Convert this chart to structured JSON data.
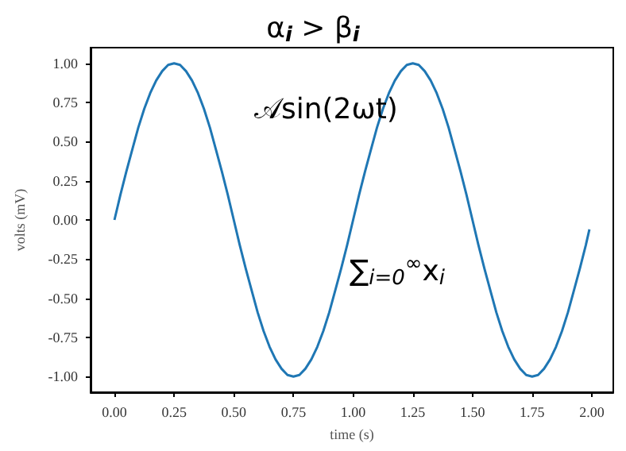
{
  "chart_data": {
    "type": "line",
    "title": "α$_{i}$ > β$_{i}$",
    "xlabel": "time (s)",
    "ylabel": "volts (mV)",
    "annotations": [
      "𝒜sin(2ωt)",
      "∑$_{i=0}$$^{∞}$x$_{i}$"
    ],
    "x": [
      0,
      0.025,
      0.05,
      0.075,
      0.1,
      0.125,
      0.15,
      0.175,
      0.2,
      0.225,
      0.25,
      0.275,
      0.3,
      0.325,
      0.35,
      0.375,
      0.4,
      0.425,
      0.45,
      0.475,
      0.5,
      0.525,
      0.55,
      0.575,
      0.6,
      0.625,
      0.65,
      0.675,
      0.7,
      0.725,
      0.75,
      0.775,
      0.8,
      0.825,
      0.85,
      0.875,
      0.9,
      0.925,
      0.95,
      0.975,
      1,
      1.025,
      1.05,
      1.075,
      1.1,
      1.125,
      1.15,
      1.175,
      1.2,
      1.225,
      1.25,
      1.275,
      1.3,
      1.325,
      1.35,
      1.375,
      1.4,
      1.425,
      1.45,
      1.475,
      1.5,
      1.525,
      1.55,
      1.575,
      1.6,
      1.625,
      1.65,
      1.675,
      1.7,
      1.725,
      1.75,
      1.775,
      1.8,
      1.825,
      1.85,
      1.875,
      1.9,
      1.925,
      1.95,
      1.975,
      1.99
    ],
    "series": [
      {
        "color": "#1f77b4",
        "values": [
          0,
          0.16,
          0.31,
          0.45,
          0.59,
          0.71,
          0.81,
          0.89,
          0.95,
          0.99,
          1,
          0.99,
          0.95,
          0.89,
          0.81,
          0.71,
          0.59,
          0.45,
          0.31,
          0.16,
          0,
          -0.16,
          -0.31,
          -0.45,
          -0.59,
          -0.71,
          -0.81,
          -0.89,
          -0.95,
          -0.99,
          -1,
          -0.99,
          -0.95,
          -0.89,
          -0.81,
          -0.71,
          -0.59,
          -0.45,
          -0.31,
          -0.16,
          0,
          0.16,
          0.31,
          0.45,
          0.59,
          0.71,
          0.81,
          0.89,
          0.95,
          0.99,
          1,
          0.99,
          0.95,
          0.89,
          0.81,
          0.71,
          0.59,
          0.45,
          0.31,
          0.16,
          0,
          -0.16,
          -0.31,
          -0.45,
          -0.59,
          -0.71,
          -0.81,
          -0.89,
          -0.95,
          -0.99,
          -1,
          -0.99,
          -0.95,
          -0.89,
          -0.81,
          -0.71,
          -0.59,
          -0.45,
          -0.31,
          -0.16,
          -0.06
        ]
      }
    ],
    "xlim": [
      -0.1,
      2.09
    ],
    "ylim": [
      -1.1,
      1.1
    ],
    "xticks": [
      {
        "value": 0,
        "label": "0.00"
      },
      {
        "value": 0.25,
        "label": "0.25"
      },
      {
        "value": 0.5,
        "label": "0.50"
      },
      {
        "value": 0.75,
        "label": "0.75"
      },
      {
        "value": 1,
        "label": "1.00"
      },
      {
        "value": 1.25,
        "label": "1.25"
      },
      {
        "value": 1.5,
        "label": "1.50"
      },
      {
        "value": 1.75,
        "label": "1.75"
      },
      {
        "value": 2,
        "label": "2.00"
      }
    ],
    "yticks": [
      {
        "value": -1,
        "label": "-1.00"
      },
      {
        "value": -0.75,
        "label": "-0.75"
      },
      {
        "value": -0.5,
        "label": "-0.50"
      },
      {
        "value": -0.25,
        "label": "-0.25"
      },
      {
        "value": 0,
        "label": "0.00"
      },
      {
        "value": 0.25,
        "label": "0.25"
      },
      {
        "value": 0.5,
        "label": "0.50"
      },
      {
        "value": 0.75,
        "label": "0.75"
      },
      {
        "value": 1,
        "label": "1.00"
      }
    ],
    "grid": false,
    "marker": "none",
    "line_style": "solid"
  }
}
